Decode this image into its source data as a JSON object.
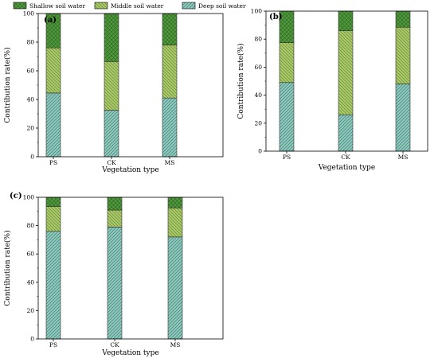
{
  "legend": {
    "items": [
      {
        "label": "Shallow soil water",
        "color": "#4f9a3c",
        "pattern": "cross"
      },
      {
        "label": "Middle soil water",
        "color": "#a9c96a",
        "pattern": "back"
      },
      {
        "label": "Deep soil water",
        "color": "#8fc9bd",
        "pattern": "fwd"
      }
    ]
  },
  "chart_data": [
    {
      "type": "bar",
      "stacked": true,
      "panel_label": "(a)",
      "xlabel": "Vegetation type",
      "ylabel": "Contribution rate(%)",
      "ylim": [
        0,
        100
      ],
      "yticks": [
        0,
        20,
        40,
        60,
        80,
        100
      ],
      "categories": [
        "PS",
        "CK",
        "MS"
      ],
      "series": [
        {
          "name": "Deep soil water",
          "values": [
            44.5,
            32.5,
            41
          ]
        },
        {
          "name": "Middle soil water",
          "values": [
            31.5,
            34,
            37
          ]
        },
        {
          "name": "Shallow soil water",
          "values": [
            24,
            33.5,
            22
          ]
        }
      ]
    },
    {
      "type": "bar",
      "stacked": true,
      "panel_label": "(b)",
      "xlabel": "Vegetation type",
      "ylabel": "Contribution rate(%)",
      "ylim": [
        0,
        100
      ],
      "yticks": [
        0,
        20,
        40,
        60,
        80,
        100
      ],
      "categories": [
        "PS",
        "CK",
        "MS"
      ],
      "series": [
        {
          "name": "Deep soil water",
          "values": [
            49,
            26,
            48
          ]
        },
        {
          "name": "Middle soil water",
          "values": [
            28.5,
            60,
            40.5
          ]
        },
        {
          "name": "Shallow soil water",
          "values": [
            22.5,
            14,
            11.5
          ]
        }
      ]
    },
    {
      "type": "bar",
      "stacked": true,
      "panel_label": "(c)",
      "xlabel": "Vegetation type",
      "ylabel": "Contribution rate(%)",
      "ylim": [
        0,
        100
      ],
      "yticks": [
        0,
        20,
        40,
        60,
        80,
        100
      ],
      "categories": [
        "PS",
        "CK",
        "MS"
      ],
      "series": [
        {
          "name": "Deep soil water",
          "values": [
            76,
            79,
            72
          ]
        },
        {
          "name": "Middle soil water",
          "values": [
            17.5,
            12,
            20.5
          ]
        },
        {
          "name": "Shallow soil water",
          "values": [
            6.5,
            9,
            7.5
          ]
        }
      ]
    }
  ]
}
